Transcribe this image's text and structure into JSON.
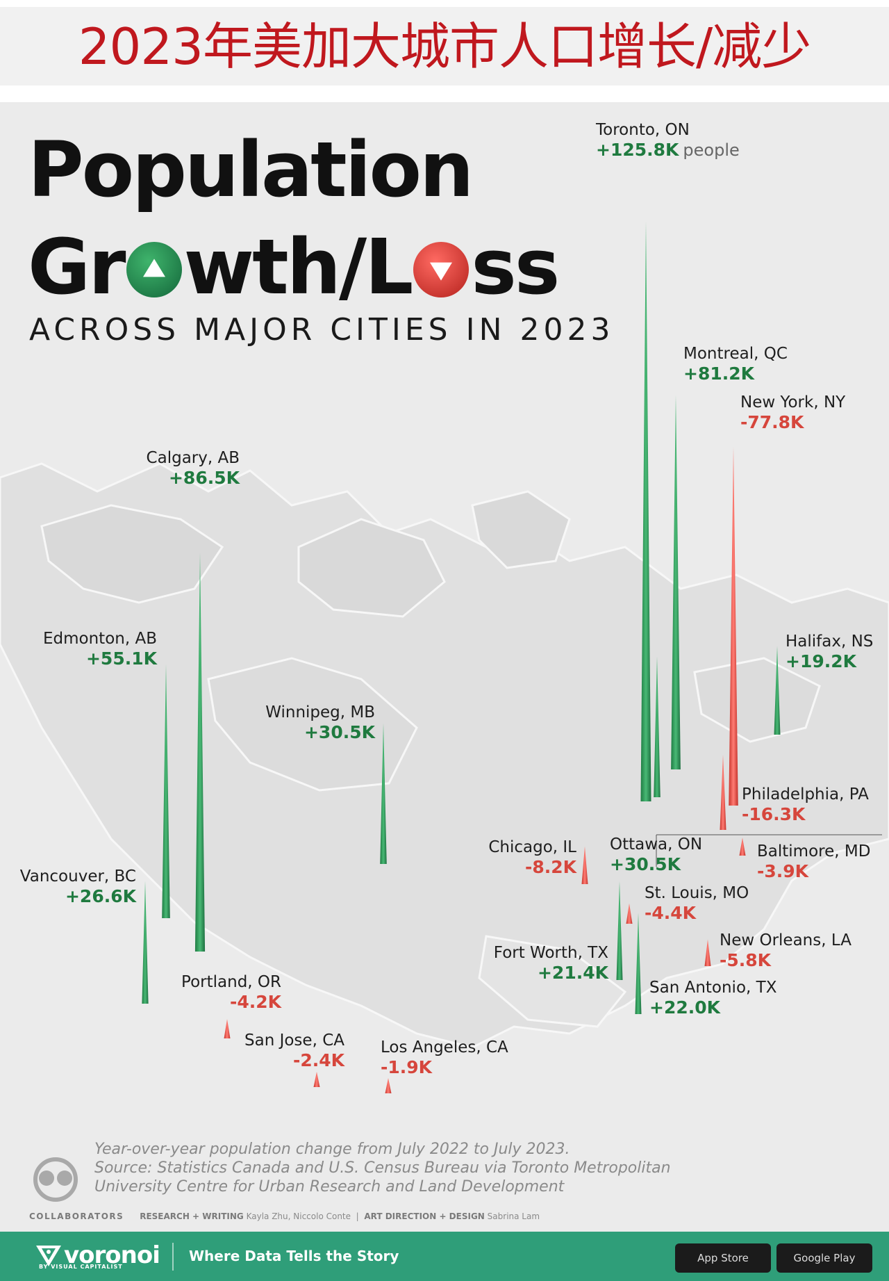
{
  "banner": {
    "text": "2023年美加大城市人口增长/减少"
  },
  "title": {
    "line1": "Population",
    "line2_a": "Gr",
    "line2_b": "wth/L",
    "line2_c": "ss",
    "subtitle": "ACROSS MAJOR CITIES IN 2023"
  },
  "colors": {
    "growth": "#1f7a3f",
    "loss": "#d6463c",
    "footer": "#2f9e79",
    "banner_text": "#c0181e"
  },
  "icons": {
    "growth": "up-triangle-icon",
    "loss": "down-triangle-icon"
  },
  "chart_data": {
    "type": "bar",
    "unit": "people",
    "series": [
      {
        "city": "Toronto, ON",
        "label": "+125.8K",
        "value": 125800
      },
      {
        "city": "Calgary, AB",
        "label": "+86.5K",
        "value": 86500
      },
      {
        "city": "Montreal, QC",
        "label": "+81.2K",
        "value": 81200
      },
      {
        "city": "Edmonton, AB",
        "label": "+55.1K",
        "value": 55100
      },
      {
        "city": "Winnipeg, MB",
        "label": "+30.5K",
        "value": 30500
      },
      {
        "city": "Ottawa, ON",
        "label": "+30.5K",
        "value": 30500
      },
      {
        "city": "Vancouver, BC",
        "label": "+26.6K",
        "value": 26600
      },
      {
        "city": "San Antonio, TX",
        "label": "+22.0K",
        "value": 22000
      },
      {
        "city": "Fort Worth, TX",
        "label": "+21.4K",
        "value": 21400
      },
      {
        "city": "Halifax, NS",
        "label": "+19.2K",
        "value": 19200
      },
      {
        "city": "Los Angeles, CA",
        "label": "-1.9K",
        "value": -1900
      },
      {
        "city": "San Jose, CA",
        "label": "-2.4K",
        "value": -2400
      },
      {
        "city": "Baltimore, MD",
        "label": "-3.9K",
        "value": -3900
      },
      {
        "city": "Portland, OR",
        "label": "-4.2K",
        "value": -4200
      },
      {
        "city": "St. Louis, MO",
        "label": "-4.4K",
        "value": -4400
      },
      {
        "city": "New Orleans, LA",
        "label": "-5.8K",
        "value": -5800
      },
      {
        "city": "Chicago, IL",
        "label": "-8.2K",
        "value": -8200
      },
      {
        "city": "Philadelphia, PA",
        "label": "-16.3K",
        "value": -16300
      },
      {
        "city": "New York, NY",
        "label": "-77.8K",
        "value": -77800
      }
    ]
  },
  "notes": {
    "line1": "Year-over-year population change from July 2022 to July 2023.",
    "line2": "Source: Statistics Canada and U.S. Census Bureau via Toronto Metropolitan",
    "line3": "University Centre for Urban Research and Land Development"
  },
  "credits": {
    "collaborators": "COLLABORATORS",
    "research_label": "RESEARCH + WRITING",
    "research_names": "Kayla Zhu, Niccolo Conte",
    "sep": "|",
    "art_label": "ART DIRECTION + DESIGN",
    "art_names": "Sabrina Lam"
  },
  "footer": {
    "brand": "voronoi",
    "brand_sub": "BY VISUAL CAPITALIST",
    "tagline": "Where Data Tells the Story",
    "app_store": "App Store",
    "google_play": "Google Play"
  }
}
